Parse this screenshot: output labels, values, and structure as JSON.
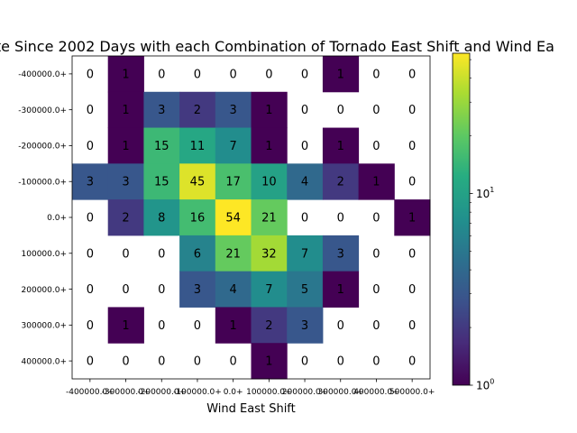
{
  "chart_data": {
    "type": "heatmap",
    "title": "ate Since 2002 Days with each Combination of Tornado East Shift and Wind Ea",
    "xlabel": "Wind East Shift",
    "ylabel": "",
    "x_tick_labels": [
      "-400000.0+",
      "-300000.0+",
      "-200000.0+",
      "-100000.0+",
      "0.0+",
      "100000.0+",
      "200000.0+",
      "300000.0+",
      "400000.0+",
      "500000.0+"
    ],
    "y_tick_labels": [
      "-400000.0+",
      "-300000.0+",
      "-200000.0+",
      "-100000.0+",
      "0.0+",
      "100000.0+",
      "200000.0+",
      "300000.0+",
      "400000.0+"
    ],
    "values": [
      [
        0,
        1,
        0,
        0,
        0,
        0,
        0,
        1,
        0,
        0
      ],
      [
        0,
        1,
        3,
        2,
        3,
        1,
        0,
        0,
        0,
        0
      ],
      [
        0,
        1,
        15,
        11,
        7,
        1,
        0,
        1,
        0,
        0
      ],
      [
        3,
        3,
        15,
        45,
        17,
        10,
        4,
        2,
        1,
        0
      ],
      [
        0,
        2,
        8,
        16,
        54,
        21,
        0,
        0,
        0,
        1
      ],
      [
        0,
        0,
        0,
        6,
        21,
        32,
        7,
        3,
        0,
        0
      ],
      [
        0,
        0,
        0,
        3,
        4,
        7,
        5,
        1,
        0,
        0
      ],
      [
        0,
        1,
        0,
        0,
        1,
        2,
        3,
        0,
        0,
        0
      ],
      [
        0,
        0,
        0,
        0,
        0,
        1,
        0,
        0,
        0,
        0
      ]
    ],
    "color_scale": "log",
    "colormap": "viridis",
    "vmin": 1,
    "vmax": 54,
    "zero_color": "#ffffff",
    "colorbar": {
      "ticks": [
        {
          "base": "10",
          "exp": "0",
          "value": 1
        },
        {
          "base": "10",
          "exp": "1",
          "value": 10
        }
      ]
    },
    "grid": false
  }
}
